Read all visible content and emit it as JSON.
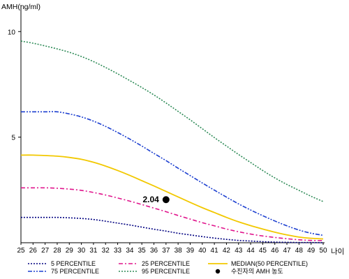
{
  "chart_data": {
    "type": "line",
    "title": "",
    "ylabel": "AMH(ng/ml)",
    "xlabel": "나이",
    "x": [
      25,
      26,
      27,
      28,
      29,
      30,
      31,
      32,
      33,
      34,
      35,
      36,
      37,
      38,
      39,
      40,
      41,
      42,
      43,
      44,
      45,
      46,
      47,
      48,
      49,
      50
    ],
    "xlim": [
      25,
      50
    ],
    "ylim": [
      0,
      11
    ],
    "yticks": [
      5,
      10
    ],
    "grid": false,
    "legend_position": "bottom",
    "series": [
      {
        "name": "5 PERCENTILE",
        "color": "#000080",
        "dash": "dotted",
        "values": [
          1.2,
          1.2,
          1.2,
          1.2,
          1.18,
          1.15,
          1.1,
          1.02,
          0.93,
          0.84,
          0.74,
          0.64,
          0.55,
          0.45,
          0.37,
          0.29,
          0.22,
          0.16,
          0.11,
          0.08,
          0.05,
          0.03,
          0.02,
          0.01,
          0.01,
          0.0
        ]
      },
      {
        "name": "25 PERCENTILE",
        "color": "#e0148c",
        "dash": "dashdot",
        "values": [
          2.6,
          2.6,
          2.6,
          2.58,
          2.54,
          2.48,
          2.38,
          2.26,
          2.12,
          1.97,
          1.81,
          1.64,
          1.47,
          1.29,
          1.12,
          0.95,
          0.8,
          0.65,
          0.52,
          0.41,
          0.32,
          0.25,
          0.19,
          0.14,
          0.11,
          0.1
        ]
      },
      {
        "name": "MEDIAN(50 PERCENTILE)",
        "color": "#f2c800",
        "dash": "solid",
        "values": [
          4.15,
          4.15,
          4.13,
          4.1,
          4.04,
          3.95,
          3.81,
          3.63,
          3.42,
          3.19,
          2.94,
          2.69,
          2.43,
          2.17,
          1.91,
          1.66,
          1.43,
          1.2,
          0.99,
          0.81,
          0.65,
          0.5,
          0.37,
          0.27,
          0.21,
          0.18
        ]
      },
      {
        "name": "75 PERCENTILE",
        "color": "#1c3fd0",
        "dash": "dashdotdot",
        "values": [
          6.2,
          6.2,
          6.2,
          6.2,
          6.1,
          5.96,
          5.76,
          5.51,
          5.22,
          4.91,
          4.58,
          4.23,
          3.89,
          3.53,
          3.18,
          2.83,
          2.49,
          2.16,
          1.84,
          1.55,
          1.28,
          1.03,
          0.8,
          0.6,
          0.45,
          0.35
        ]
      },
      {
        "name": "95 PERCENTILE",
        "color": "#2e8b57",
        "dash": "dotted",
        "values": [
          9.55,
          9.45,
          9.32,
          9.18,
          9.02,
          8.82,
          8.58,
          8.3,
          8.0,
          7.68,
          7.35,
          7.0,
          6.62,
          6.22,
          5.82,
          5.4,
          4.98,
          4.58,
          4.18,
          3.8,
          3.42,
          3.07,
          2.76,
          2.48,
          2.2,
          1.95
        ]
      }
    ],
    "highlight_point": {
      "name": "수진자의 AMH 농도",
      "x": 37,
      "y": 2.04,
      "label": "2.04",
      "color": "#000000"
    }
  }
}
